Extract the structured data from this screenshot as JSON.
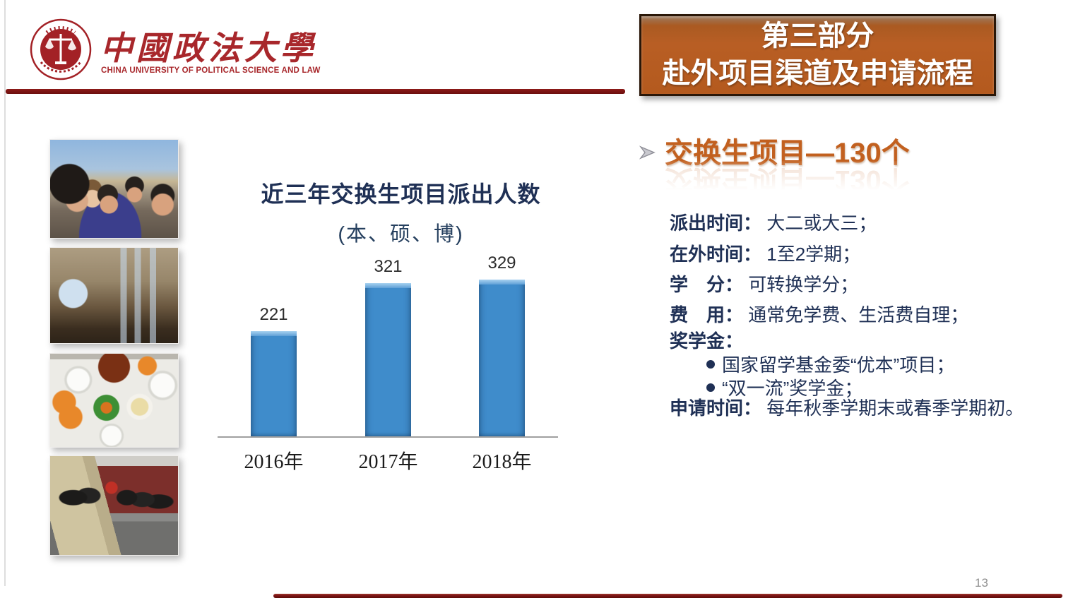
{
  "header": {
    "university_name_cn": "中國政法大學",
    "university_name_en": "CHINA UNIVERSITY OF POLITICAL SCIENCE AND LAW"
  },
  "banner": {
    "line1": "第三部分",
    "line2": "赴外项目渠道及申请流程"
  },
  "photos": [
    {
      "name": "students-group-selfie"
    },
    {
      "name": "library-reading-room"
    },
    {
      "name": "dinner-table-food"
    },
    {
      "name": "buffet-gathering"
    }
  ],
  "chart_data": {
    "type": "bar",
    "title": "近三年交换生项目派出人数",
    "subtitle": "(本、硕、博)",
    "categories": [
      "2016年",
      "2017年",
      "2018年"
    ],
    "values": [
      221,
      321,
      329
    ],
    "ylim": [
      0,
      350
    ],
    "bar_color": "#3f8ccb",
    "grid": false,
    "legend": "none",
    "data_labels": [
      "221",
      "321",
      "329"
    ]
  },
  "content": {
    "heading": "交换生项目—130个",
    "items": [
      {
        "label": "派出时间：",
        "value": "大二或大三；"
      },
      {
        "label": "在外时间：",
        "value": "1至2学期；"
      },
      {
        "label": "学　分：",
        "value": "可转换学分；"
      },
      {
        "label": "费　用：",
        "value": "通常免学费、生活费自理；"
      },
      {
        "label": "奖学金：",
        "value": ""
      },
      {
        "label": "",
        "value": "国家留学基金委“优本”项目；"
      },
      {
        "label": "",
        "value": "“双一流”奖学金；"
      },
      {
        "label": "申请时间：",
        "value": "每年秋季学期末或春季学期初。"
      }
    ]
  },
  "footer": {
    "page_number": "13"
  },
  "colors": {
    "banner_bg": "#b45a1e",
    "accent_orange": "#c2601f",
    "text_navy": "#1f3055",
    "bar_blue": "#3f8ccb",
    "rule_red": "#7b1416"
  }
}
